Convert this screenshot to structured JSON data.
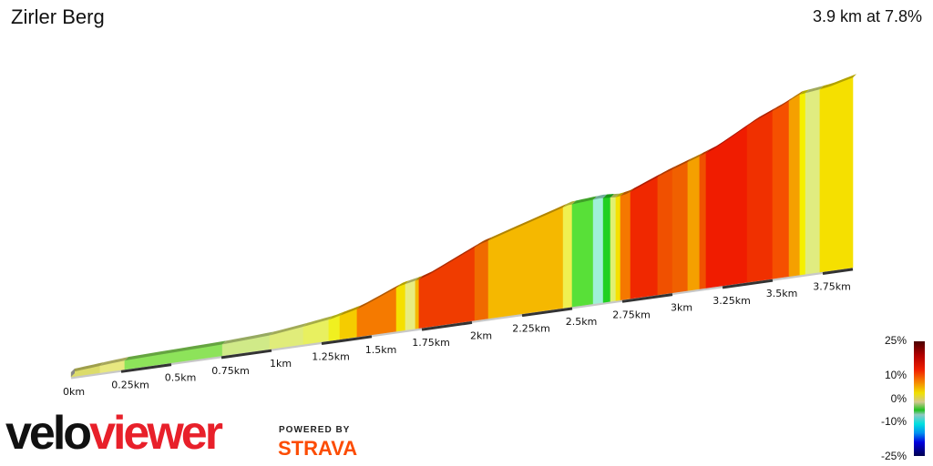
{
  "title": "Zirler Berg",
  "summary": "3.9 km at 7.8%",
  "chart_data": {
    "type": "area",
    "title": "Zirler Berg",
    "distance_km": 3.9,
    "avg_gradient_pct": 7.8,
    "xlim": [
      0,
      3.9
    ],
    "tick_labels": [
      "0km",
      "0.25km",
      "0.5km",
      "0.75km",
      "1km",
      "1.25km",
      "1.5km",
      "1.75km",
      "2km",
      "2.25km",
      "2.5km",
      "2.75km",
      "3km",
      "3.25km",
      "3.5km",
      "3.75km"
    ],
    "tick_values": [
      0,
      0.25,
      0.5,
      0.75,
      1,
      1.25,
      1.5,
      1.75,
      2,
      2.25,
      2.5,
      2.75,
      3,
      3.25,
      3.5,
      3.75
    ],
    "profile": [
      [
        0,
        0
      ],
      [
        0.27,
        7
      ],
      [
        0.76,
        11
      ],
      [
        1.0,
        15
      ],
      [
        1.17,
        22
      ],
      [
        1.3,
        28
      ],
      [
        1.44,
        39
      ],
      [
        1.64,
        66
      ],
      [
        1.76,
        74
      ],
      [
        2.04,
        116
      ],
      [
        2.48,
        160
      ],
      [
        2.64,
        164
      ],
      [
        2.72,
        162
      ],
      [
        2.77,
        165
      ],
      [
        2.96,
        190
      ],
      [
        3.11,
        207
      ],
      [
        3.21,
        219
      ],
      [
        3.41,
        255
      ],
      [
        3.54,
        273
      ],
      [
        3.63,
        288
      ],
      [
        3.78,
        294
      ],
      [
        3.9,
        304
      ]
    ],
    "segments": [
      {
        "from": 0,
        "color": "#dcdc6a"
      },
      {
        "from": 0.145,
        "color": "#e8e880"
      },
      {
        "from": 0.268,
        "color": "#8de35a"
      },
      {
        "from": 0.755,
        "color": "#d0ea88"
      },
      {
        "from": 0.991,
        "color": "#e0ec7a"
      },
      {
        "from": 1.159,
        "color": "#e8f060"
      },
      {
        "from": 1.286,
        "color": "#f0f020"
      },
      {
        "from": 1.341,
        "color": "#f5cc00"
      },
      {
        "from": 1.427,
        "color": "#f57a00"
      },
      {
        "from": 1.623,
        "color": "#f5e000"
      },
      {
        "from": 1.668,
        "color": "#e8ec80"
      },
      {
        "from": 1.718,
        "color": "#f5b800"
      },
      {
        "from": 1.736,
        "color": "#f03c00"
      },
      {
        "from": 2.014,
        "color": "#f06a00"
      },
      {
        "from": 2.082,
        "color": "#f5b800"
      },
      {
        "from": 2.455,
        "color": "#f0f050"
      },
      {
        "from": 2.5,
        "color": "#58e038"
      },
      {
        "from": 2.605,
        "color": "#a0f0d8"
      },
      {
        "from": 2.655,
        "color": "#20d020"
      },
      {
        "from": 2.691,
        "color": "#e0f070"
      },
      {
        "from": 2.718,
        "color": "#f5e000"
      },
      {
        "from": 2.741,
        "color": "#f57800"
      },
      {
        "from": 2.791,
        "color": "#f02800"
      },
      {
        "from": 2.927,
        "color": "#f05000"
      },
      {
        "from": 3.0,
        "color": "#f06000"
      },
      {
        "from": 3.077,
        "color": "#f5a000"
      },
      {
        "from": 3.136,
        "color": "#f05000"
      },
      {
        "from": 3.168,
        "color": "#f01c00"
      },
      {
        "from": 3.373,
        "color": "#f03000"
      },
      {
        "from": 3.5,
        "color": "#f55000"
      },
      {
        "from": 3.582,
        "color": "#f5a000"
      },
      {
        "from": 3.636,
        "color": "#f5f000"
      },
      {
        "from": 3.664,
        "color": "#e0ec80"
      },
      {
        "from": 3.736,
        "color": "#f5e000"
      }
    ],
    "legend": {
      "title": "",
      "labels": [
        "25%",
        "10%",
        "0%",
        "-10%",
        "-25%"
      ],
      "placement": "bottom-right"
    }
  },
  "logo": {
    "velo": "velo",
    "viewer": "viewer"
  },
  "powered_by": "POWERED BY",
  "strava": "STRAVA"
}
